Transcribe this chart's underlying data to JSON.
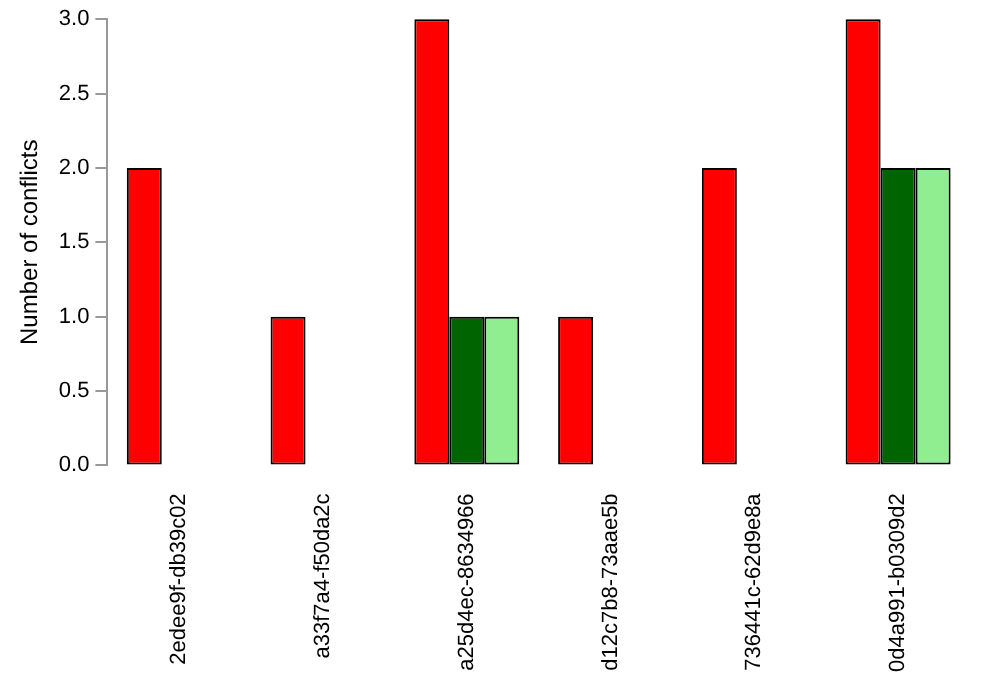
{
  "chart_data": {
    "type": "bar",
    "ylabel": "Number of conflicts",
    "categories": [
      "2edee9f-db39c02",
      "a33f7a4-f50da2c",
      "a25d4ec-8634966",
      "d12c7b8-73aae5b",
      "736441c-62d9e8a",
      "0d4a991-b0309d2"
    ],
    "series": [
      {
        "color": "#ff0000",
        "values": [
          2,
          1,
          3,
          1,
          2,
          3
        ]
      },
      {
        "color": "#006400",
        "values": [
          0,
          0,
          1,
          0,
          0,
          2
        ]
      },
      {
        "color": "#90ee90",
        "values": [
          0,
          0,
          1,
          0,
          0,
          2
        ]
      }
    ],
    "ylim": [
      0,
      3
    ],
    "yticks": [
      {
        "value": 0,
        "label": "0.0"
      },
      {
        "value": 0.5,
        "label": "0.5"
      },
      {
        "value": 1,
        "label": "1.0"
      },
      {
        "value": 1.5,
        "label": "1.5"
      },
      {
        "value": 2,
        "label": "2.0"
      },
      {
        "value": 2.5,
        "label": "2.5"
      },
      {
        "value": 3,
        "label": "3.0"
      }
    ],
    "grid": false,
    "legend": false
  }
}
